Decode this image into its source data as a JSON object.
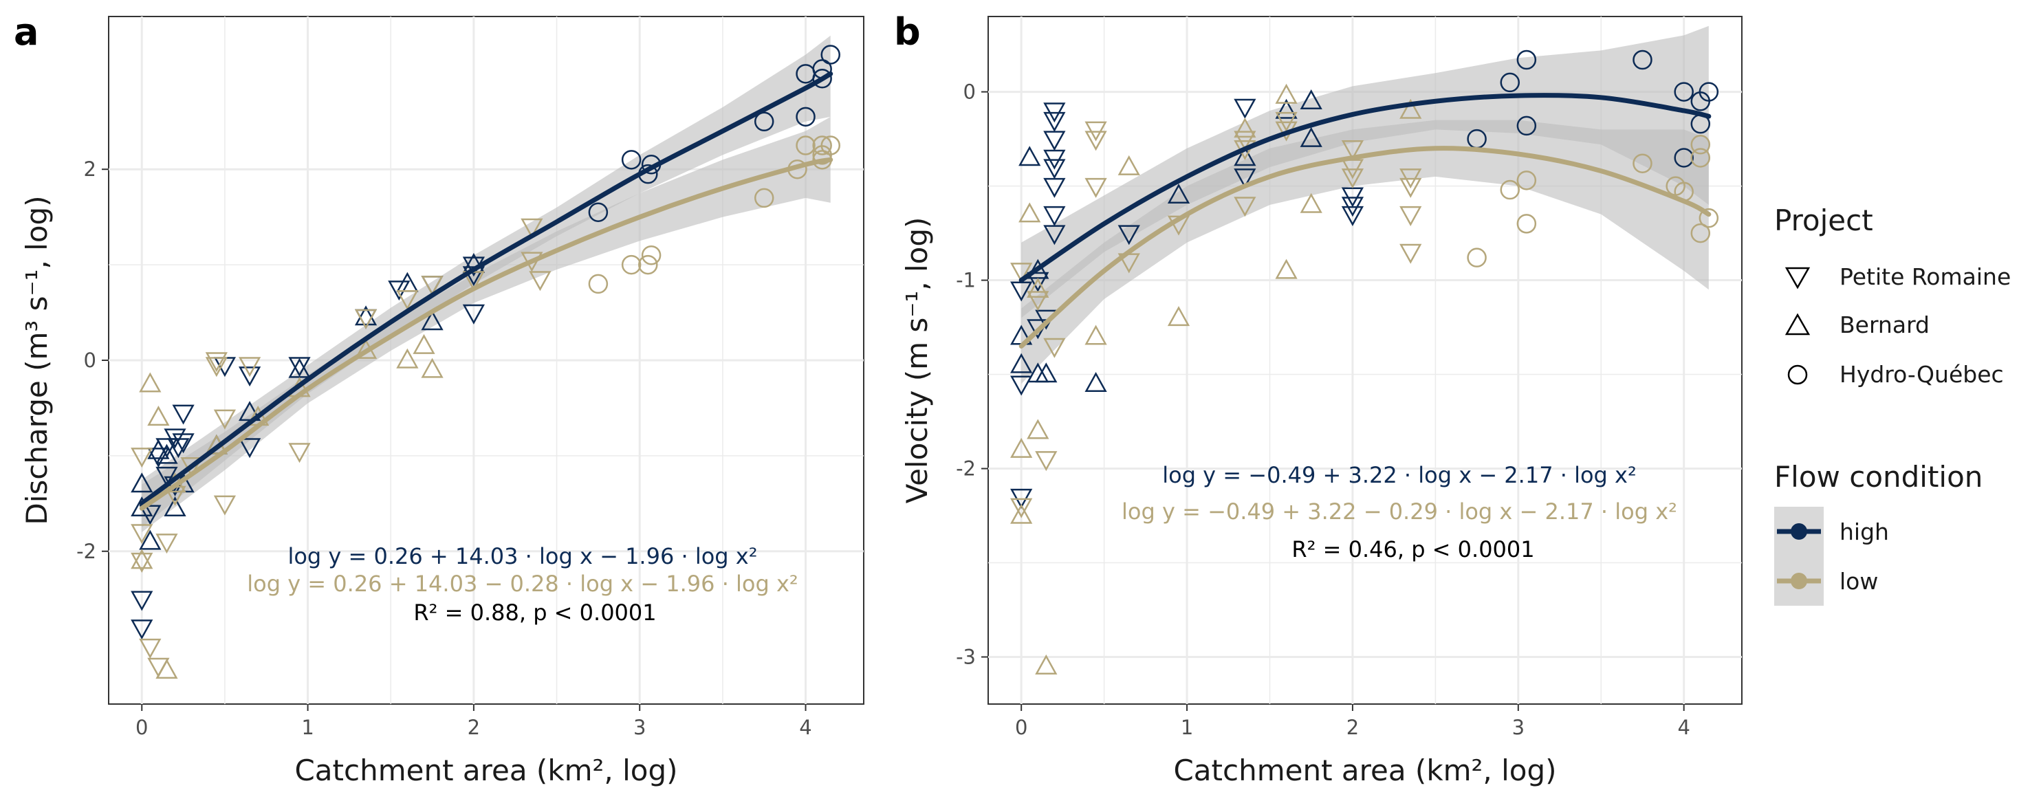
{
  "colors": {
    "high": "#0d2b55",
    "low": "#b5a77c",
    "band": "#bdbdbd",
    "grid": "#ebebeb"
  },
  "legend": {
    "project_title": "Project",
    "projects": [
      {
        "name": "Petite Romaine",
        "shape": "triangle-down"
      },
      {
        "name": "Bernard",
        "shape": "triangle-up"
      },
      {
        "name": "Hydro-Québec",
        "shape": "circle"
      }
    ],
    "flow_title": "Flow condition",
    "flows": [
      {
        "name": "high"
      },
      {
        "name": "low"
      }
    ]
  },
  "chart_data": [
    {
      "type": "scatter",
      "panel_label": "a",
      "ylabel": "Discharge (m³ s⁻¹, log)",
      "xlabel": "Catchment area (km², log)",
      "xlim": [
        -0.2,
        4.35
      ],
      "ylim": [
        -3.6,
        3.6
      ],
      "xticks": [
        0,
        1,
        2,
        3,
        4
      ],
      "yticks": [
        -2,
        0,
        2
      ],
      "grid": true,
      "equations": {
        "high": "log y = 0.26 + 14.03 · log x − 1.96 · log x²",
        "low": "log y = 0.26 + 14.03 − 0.28 · log x − 1.96 · log x²",
        "stats": "R² = 0.88, p < 0.0001"
      },
      "fits": [
        {
          "flow": "high",
          "x": [
            0,
            0.5,
            1,
            1.5,
            2,
            2.5,
            3,
            3.5,
            4,
            4.15
          ],
          "y": [
            -1.5,
            -0.85,
            -0.2,
            0.4,
            0.95,
            1.45,
            1.95,
            2.4,
            2.85,
            3.0
          ],
          "ci": [
            [
              -1.75,
              -1.25
            ],
            [
              -1.05,
              -0.65
            ],
            [
              -0.35,
              -0.05
            ],
            [
              0.25,
              0.55
            ],
            [
              0.8,
              1.1
            ],
            [
              1.3,
              1.6
            ],
            [
              1.75,
              2.15
            ],
            [
              2.15,
              2.65
            ],
            [
              2.5,
              3.2
            ],
            [
              2.55,
              3.4
            ]
          ]
        },
        {
          "flow": "low",
          "x": [
            0,
            0.5,
            1,
            1.5,
            2,
            2.5,
            3,
            3.5,
            4,
            4.15
          ],
          "y": [
            -1.55,
            -0.95,
            -0.3,
            0.25,
            0.75,
            1.15,
            1.5,
            1.8,
            2.05,
            2.1
          ],
          "ci": [
            [
              -1.8,
              -1.3
            ],
            [
              -1.15,
              -0.75
            ],
            [
              -0.45,
              -0.15
            ],
            [
              0.1,
              0.4
            ],
            [
              0.6,
              0.9
            ],
            [
              0.95,
              1.35
            ],
            [
              1.25,
              1.75
            ],
            [
              1.5,
              2.1
            ],
            [
              1.7,
              2.4
            ],
            [
              1.65,
              2.55
            ]
          ]
        }
      ],
      "points": [
        {
          "shape": "triangle-down",
          "flow": "high",
          "x": [
            0,
            0,
            0.05,
            0.1,
            0.15,
            0.2,
            0.22,
            0.25,
            0.25,
            0.2,
            0.15,
            0.65,
            0.95,
            1.35,
            1.55,
            1.75,
            2.0,
            2.0,
            2.0,
            0.5,
            0.65
          ],
          "y": [
            -2.5,
            -2.8,
            -1.6,
            -1.0,
            -0.9,
            -0.8,
            -0.9,
            -0.55,
            -0.85,
            -1.3,
            -1.2,
            -0.15,
            -0.05,
            0.45,
            0.75,
            0.8,
            1.0,
            0.9,
            0.5,
            -0.05,
            -0.9
          ]
        },
        {
          "shape": "triangle-up",
          "flow": "high",
          "x": [
            0,
            0,
            0.05,
            0.1,
            0.15,
            0.2,
            0.25,
            0.45,
            0.65,
            0.95,
            1.35,
            1.6,
            1.75,
            2.0
          ],
          "y": [
            -1.3,
            -1.55,
            -1.9,
            -0.95,
            -1.0,
            -1.55,
            -1.3,
            -0.9,
            -0.55,
            -0.1,
            0.45,
            0.8,
            0.4,
            1.0
          ]
        },
        {
          "shape": "circle",
          "flow": "high",
          "x": [
            2.75,
            2.95,
            3.05,
            3.07,
            3.75,
            4.0,
            4.0,
            4.1,
            4.15,
            4.1
          ],
          "y": [
            1.55,
            2.1,
            1.95,
            2.05,
            2.5,
            3.0,
            2.55,
            3.05,
            3.2,
            2.95
          ]
        },
        {
          "shape": "triangle-down",
          "flow": "low",
          "x": [
            0,
            0,
            0,
            0.05,
            0.1,
            0.15,
            0.2,
            0.3,
            0.45,
            0.5,
            0.5,
            0.65,
            0.95,
            1.6,
            1.75,
            2.0,
            2.35,
            2.35,
            2.4,
            1.35,
            0.45
          ],
          "y": [
            -1.0,
            -1.8,
            -2.1,
            -3.0,
            -3.2,
            -1.9,
            -1.4,
            -1.1,
            0.0,
            -0.6,
            -1.5,
            -0.05,
            -0.95,
            0.65,
            0.8,
            0.85,
            1.4,
            1.05,
            0.85,
            0.45,
            -0.05
          ]
        },
        {
          "shape": "triangle-up",
          "flow": "low",
          "x": [
            0,
            0.05,
            0.1,
            0.15,
            0.2,
            0.45,
            0.7,
            0.95,
            1.35,
            1.6,
            1.7,
            1.75
          ],
          "y": [
            -2.1,
            -0.25,
            -0.6,
            -3.25,
            -1.3,
            -0.9,
            -0.6,
            -0.3,
            0.1,
            0.0,
            0.15,
            -0.1
          ]
        },
        {
          "shape": "circle",
          "flow": "low",
          "x": [
            2.75,
            2.95,
            3.05,
            3.07,
            3.75,
            3.95,
            4.0,
            4.1,
            4.1,
            4.15,
            4.1
          ],
          "y": [
            0.8,
            1.0,
            1.0,
            1.1,
            1.7,
            2.0,
            2.25,
            2.15,
            2.25,
            2.25,
            2.1
          ]
        }
      ]
    },
    {
      "type": "scatter",
      "panel_label": "b",
      "ylabel": "Velocity (m s⁻¹, log)",
      "xlabel": "Catchment area (km², log)",
      "xlim": [
        -0.2,
        4.35
      ],
      "ylim": [
        -3.25,
        0.4
      ],
      "xticks": [
        0,
        1,
        2,
        3,
        4
      ],
      "yticks": [
        0,
        -1,
        -2,
        -3
      ],
      "grid": true,
      "equations": {
        "high": "log y = −0.49 + 3.22 · log x − 2.17 · log x²",
        "low": "log y = −0.49 + 3.22 − 0.29 · log x − 2.17 · log x²",
        "stats": "R² = 0.46, p < 0.0001"
      },
      "fits": [
        {
          "flow": "high",
          "x": [
            0,
            0.5,
            1,
            1.5,
            2,
            2.5,
            3,
            3.5,
            4,
            4.15
          ],
          "y": [
            -1.0,
            -0.7,
            -0.45,
            -0.25,
            -0.12,
            -0.05,
            -0.02,
            -0.03,
            -0.1,
            -0.13
          ],
          "ci": [
            [
              -1.2,
              -0.8
            ],
            [
              -0.85,
              -0.55
            ],
            [
              -0.6,
              -0.3
            ],
            [
              -0.4,
              -0.1
            ],
            [
              -0.27,
              0.03
            ],
            [
              -0.2,
              0.1
            ],
            [
              -0.22,
              0.18
            ],
            [
              -0.28,
              0.22
            ],
            [
              -0.5,
              0.3
            ],
            [
              -0.6,
              0.35
            ]
          ]
        },
        {
          "flow": "low",
          "x": [
            0,
            0.5,
            1,
            1.5,
            2,
            2.5,
            3,
            3.5,
            4,
            4.15
          ],
          "y": [
            -1.35,
            -0.95,
            -0.65,
            -0.45,
            -0.35,
            -0.3,
            -0.33,
            -0.42,
            -0.58,
            -0.65
          ],
          "ci": [
            [
              -1.55,
              -1.15
            ],
            [
              -1.1,
              -0.8
            ],
            [
              -0.8,
              -0.5
            ],
            [
              -0.6,
              -0.3
            ],
            [
              -0.5,
              -0.2
            ],
            [
              -0.45,
              -0.15
            ],
            [
              -0.5,
              -0.15
            ],
            [
              -0.65,
              -0.2
            ],
            [
              -0.95,
              -0.2
            ],
            [
              -1.05,
              -0.25
            ]
          ]
        }
      ],
      "points": [
        {
          "shape": "triangle-down",
          "flow": "high",
          "x": [
            0,
            0,
            0,
            0.2,
            0.2,
            0.2,
            0.2,
            0.2,
            0.2,
            0.2,
            0.2,
            0.65,
            1.35,
            1.35,
            2.0,
            2.0,
            2.0,
            0.1,
            0.15,
            0.1
          ],
          "y": [
            -1.05,
            -1.55,
            -2.15,
            -0.1,
            -0.15,
            -0.25,
            -0.35,
            -0.4,
            -0.5,
            -0.65,
            -0.75,
            -0.75,
            -0.08,
            -0.45,
            -0.55,
            -0.6,
            -0.65,
            -1.0,
            -1.2,
            -1.25
          ]
        },
        {
          "shape": "triangle-up",
          "flow": "high",
          "x": [
            0,
            0,
            0.05,
            0.1,
            0.1,
            0.15,
            0.45,
            0.95,
            1.35,
            1.6,
            1.75,
            1.75
          ],
          "y": [
            -1.3,
            -1.45,
            -0.35,
            -1.5,
            -0.95,
            -1.5,
            -1.55,
            -0.55,
            -0.35,
            -0.1,
            -0.05,
            -0.25
          ]
        },
        {
          "shape": "circle",
          "flow": "high",
          "x": [
            2.75,
            2.95,
            3.05,
            3.05,
            3.75,
            4.0,
            4.0,
            4.1,
            4.1,
            4.15
          ],
          "y": [
            -0.25,
            0.05,
            -0.18,
            0.17,
            0.17,
            0.0,
            -0.35,
            -0.05,
            -0.17,
            0.0
          ]
        },
        {
          "shape": "triangle-down",
          "flow": "low",
          "x": [
            0,
            0,
            0.1,
            0.15,
            0.2,
            0.45,
            0.45,
            0.45,
            0.65,
            1.35,
            1.35,
            1.35,
            1.6,
            1.6,
            2.0,
            2.0,
            2.0,
            2.35,
            2.35,
            2.35,
            2.35,
            0.95
          ],
          "y": [
            -2.2,
            -0.95,
            -1.1,
            -1.95,
            -1.35,
            -0.2,
            -0.25,
            -0.5,
            -0.9,
            -0.25,
            -0.3,
            -0.6,
            -0.15,
            -0.2,
            -0.3,
            -0.4,
            -0.45,
            -0.45,
            -0.5,
            -0.65,
            -0.85,
            -0.7
          ]
        },
        {
          "shape": "triangle-up",
          "flow": "low",
          "x": [
            0,
            0,
            0.05,
            0.1,
            0.15,
            0.45,
            0.65,
            0.95,
            1.35,
            1.6,
            1.6,
            1.75,
            2.35,
            0.1
          ],
          "y": [
            -1.9,
            -2.25,
            -0.65,
            -1.8,
            -3.05,
            -1.3,
            -0.4,
            -1.2,
            -0.2,
            -0.02,
            -0.95,
            -0.6,
            -0.1,
            -1.05
          ]
        },
        {
          "shape": "circle",
          "flow": "low",
          "x": [
            2.75,
            2.95,
            3.05,
            3.05,
            3.75,
            3.95,
            4.0,
            4.1,
            4.1,
            4.15,
            4.1
          ],
          "y": [
            -0.88,
            -0.52,
            -0.47,
            -0.7,
            -0.38,
            -0.5,
            -0.53,
            -0.35,
            -0.28,
            -0.67,
            -0.75
          ]
        }
      ]
    }
  ]
}
